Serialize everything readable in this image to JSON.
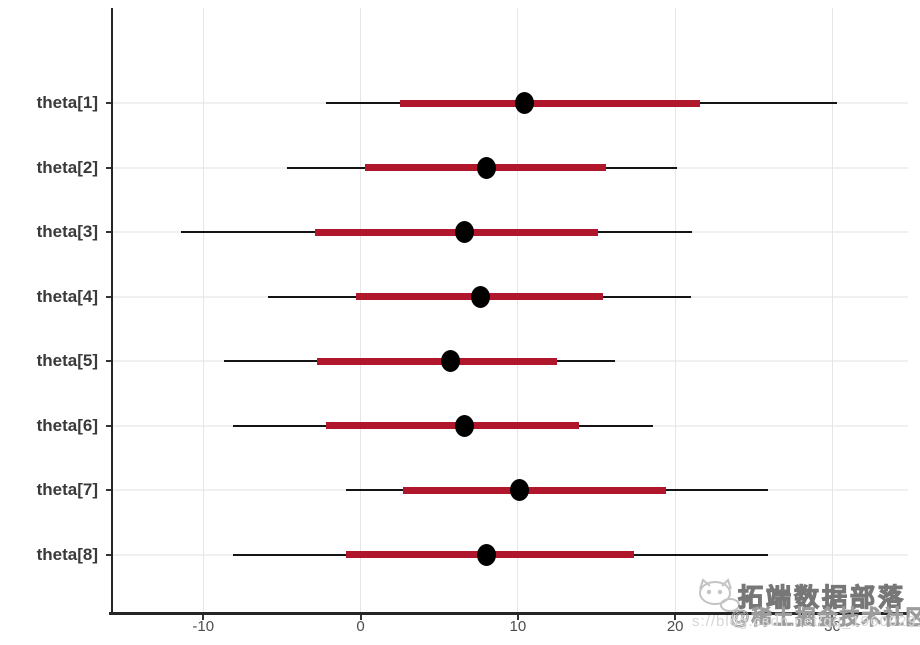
{
  "chart_data": {
    "type": "interval",
    "title": "",
    "xlabel": "",
    "ylabel": "",
    "categories": [
      "theta[1]",
      "theta[2]",
      "theta[3]",
      "theta[4]",
      "theta[5]",
      "theta[6]",
      "theta[7]",
      "theta[8]"
    ],
    "point_estimates": [
      10.4,
      8.0,
      6.6,
      7.6,
      5.7,
      6.6,
      10.1,
      8.0
    ],
    "inner_intervals": [
      [
        2.5,
        21.6
      ],
      [
        0.3,
        15.6
      ],
      [
        -2.9,
        15.1
      ],
      [
        -0.3,
        15.4
      ],
      [
        -2.8,
        12.5
      ],
      [
        -2.2,
        13.9
      ],
      [
        2.7,
        19.4
      ],
      [
        -0.9,
        17.4
      ]
    ],
    "outer_intervals": [
      [
        -2.2,
        30.3
      ],
      [
        -4.7,
        20.1
      ],
      [
        -11.4,
        21.1
      ],
      [
        -5.9,
        21.0
      ],
      [
        -8.7,
        16.2
      ],
      [
        -8.1,
        18.6
      ],
      [
        -0.9,
        25.9
      ],
      [
        -8.1,
        25.9
      ]
    ],
    "x_ticks": [
      -10,
      0,
      10,
      20,
      30
    ],
    "xlim": [
      -15.8,
      34.8
    ],
    "grid": "vertical lines at major x ticks, light horizontal line at each parameter row",
    "legend": "none",
    "colors": {
      "outer_interval": "#141414",
      "inner_interval": "#b0172d",
      "point": "#000000",
      "gridline_v": "#e6e6e6",
      "gridline_h": "#f0f0f0",
      "axis": "#262626",
      "y_label": "#3a3a3a",
      "x_tick_label": "#4d4d4d"
    }
  },
  "watermark": {
    "logo": "cat-icon",
    "brand": "拓端数据部落",
    "community": "@稀土掘金技术社区",
    "url_fragment": "s://blog.csdn.net/qq_19600291"
  }
}
